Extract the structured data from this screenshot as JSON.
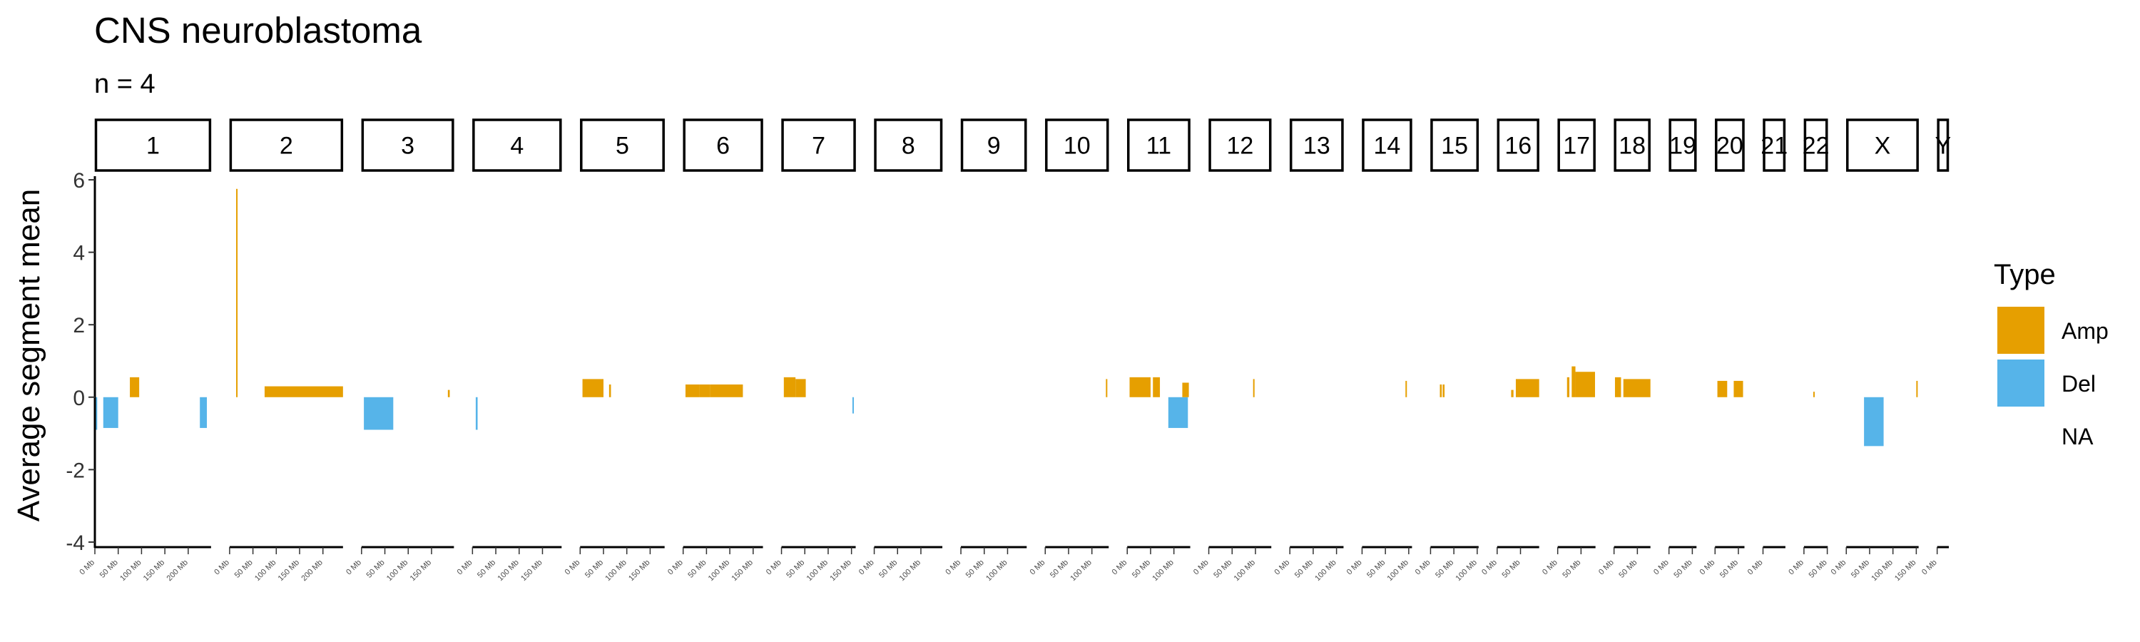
{
  "chart_data": {
    "type": "bar",
    "title": "CNS neuroblastoma",
    "subtitle": "n = 4",
    "ylabel": "Average segment mean",
    "xlabel": "",
    "ylim": [
      -4.1,
      6.1
    ],
    "yticks": [
      -4,
      -2,
      0,
      2,
      4,
      6
    ],
    "grid": false,
    "legend": {
      "title": "Type",
      "position": "right",
      "entries": [
        {
          "label": "Amp",
          "color": "#E69F00"
        },
        {
          "label": "Del",
          "color": "#56B4E9"
        },
        {
          "label": "NA",
          "color": null
        }
      ]
    },
    "colors": {
      "Amp": "#E69F00",
      "Del": "#56B4E9"
    },
    "tick_step_mb": 50,
    "tick_label_suffix": " Mb",
    "chromosomes": [
      {
        "name": "1",
        "length_mb": 249
      },
      {
        "name": "2",
        "length_mb": 243
      },
      {
        "name": "3",
        "length_mb": 198
      },
      {
        "name": "4",
        "length_mb": 191
      },
      {
        "name": "5",
        "length_mb": 181
      },
      {
        "name": "6",
        "length_mb": 171
      },
      {
        "name": "7",
        "length_mb": 159
      },
      {
        "name": "8",
        "length_mb": 146
      },
      {
        "name": "9",
        "length_mb": 141
      },
      {
        "name": "10",
        "length_mb": 136
      },
      {
        "name": "11",
        "length_mb": 135
      },
      {
        "name": "12",
        "length_mb": 134
      },
      {
        "name": "13",
        "length_mb": 115
      },
      {
        "name": "14",
        "length_mb": 107
      },
      {
        "name": "15",
        "length_mb": 103
      },
      {
        "name": "16",
        "length_mb": 90
      },
      {
        "name": "17",
        "length_mb": 81
      },
      {
        "name": "18",
        "length_mb": 78
      },
      {
        "name": "19",
        "length_mb": 59
      },
      {
        "name": "20",
        "length_mb": 63
      },
      {
        "name": "21",
        "length_mb": 48
      },
      {
        "name": "22",
        "length_mb": 51
      },
      {
        "name": "X",
        "length_mb": 155
      },
      {
        "name": "Y",
        "length_mb": 25
      }
    ],
    "segments": [
      {
        "chr": "1",
        "start": 2,
        "end": 5,
        "value": -0.9,
        "type": "Del"
      },
      {
        "chr": "1",
        "start": 18,
        "end": 50,
        "value": -0.85,
        "type": "Del"
      },
      {
        "chr": "1",
        "start": 75,
        "end": 95,
        "value": 0.55,
        "type": "Amp"
      },
      {
        "chr": "1",
        "start": 225,
        "end": 240,
        "value": -0.85,
        "type": "Del"
      },
      {
        "chr": "2",
        "start": 14,
        "end": 16,
        "value": 5.75,
        "type": "Amp"
      },
      {
        "chr": "2",
        "start": 75,
        "end": 243,
        "value": 0.3,
        "type": "Amp"
      },
      {
        "chr": "3",
        "start": 5,
        "end": 68,
        "value": -0.9,
        "type": "Del"
      },
      {
        "chr": "3",
        "start": 185,
        "end": 189,
        "value": 0.2,
        "type": "Amp"
      },
      {
        "chr": "4",
        "start": 7,
        "end": 11,
        "value": -0.9,
        "type": "Del"
      },
      {
        "chr": "5",
        "start": 5,
        "end": 50,
        "value": 0.5,
        "type": "Amp"
      },
      {
        "chr": "5",
        "start": 62,
        "end": 66,
        "value": 0.35,
        "type": "Amp"
      },
      {
        "chr": "6",
        "start": 5,
        "end": 35,
        "value": 0.35,
        "type": "Amp"
      },
      {
        "chr": "6",
        "start": 35,
        "end": 58,
        "value": 0.35,
        "type": "Amp"
      },
      {
        "chr": "6",
        "start": 58,
        "end": 128,
        "value": 0.35,
        "type": "Amp"
      },
      {
        "chr": "7",
        "start": 5,
        "end": 30,
        "value": 0.55,
        "type": "Amp"
      },
      {
        "chr": "7",
        "start": 30,
        "end": 52,
        "value": 0.5,
        "type": "Amp"
      },
      {
        "chr": "7",
        "start": 152,
        "end": 154,
        "value": -0.45,
        "type": "Del"
      },
      {
        "chr": "10",
        "start": 130,
        "end": 132,
        "value": 0.5,
        "type": "Amp"
      },
      {
        "chr": "11",
        "start": 5,
        "end": 50,
        "value": 0.55,
        "type": "Amp"
      },
      {
        "chr": "11",
        "start": 55,
        "end": 70,
        "value": 0.55,
        "type": "Amp"
      },
      {
        "chr": "11",
        "start": 88,
        "end": 130,
        "value": -0.85,
        "type": "Del"
      },
      {
        "chr": "11",
        "start": 118,
        "end": 132,
        "value": 0.4,
        "type": "Amp"
      },
      {
        "chr": "12",
        "start": 95,
        "end": 98,
        "value": 0.5,
        "type": "Amp"
      },
      {
        "chr": "14",
        "start": 93,
        "end": 96,
        "value": 0.45,
        "type": "Amp"
      },
      {
        "chr": "15",
        "start": 20,
        "end": 24,
        "value": 0.35,
        "type": "Amp"
      },
      {
        "chr": "15",
        "start": 26,
        "end": 30,
        "value": 0.35,
        "type": "Amp"
      },
      {
        "chr": "16",
        "start": 30,
        "end": 35,
        "value": 0.2,
        "type": "Amp"
      },
      {
        "chr": "16",
        "start": 40,
        "end": 90,
        "value": 0.5,
        "type": "Amp"
      },
      {
        "chr": "17",
        "start": 20,
        "end": 25,
        "value": 0.55,
        "type": "Amp"
      },
      {
        "chr": "17",
        "start": 30,
        "end": 38,
        "value": 0.85,
        "type": "Amp"
      },
      {
        "chr": "17",
        "start": 38,
        "end": 80,
        "value": 0.7,
        "type": "Amp"
      },
      {
        "chr": "18",
        "start": 2,
        "end": 15,
        "value": 0.55,
        "type": "Amp"
      },
      {
        "chr": "18",
        "start": 20,
        "end": 78,
        "value": 0.5,
        "type": "Amp"
      },
      {
        "chr": "20",
        "start": 5,
        "end": 26,
        "value": 0.45,
        "type": "Amp"
      },
      {
        "chr": "20",
        "start": 40,
        "end": 60,
        "value": 0.45,
        "type": "Amp"
      },
      {
        "chr": "22",
        "start": 20,
        "end": 23,
        "value": 0.15,
        "type": "Amp"
      },
      {
        "chr": "X",
        "start": 38,
        "end": 80,
        "value": -1.35,
        "type": "Del"
      },
      {
        "chr": "X",
        "start": 150,
        "end": 153,
        "value": 0.45,
        "type": "Amp"
      }
    ]
  }
}
